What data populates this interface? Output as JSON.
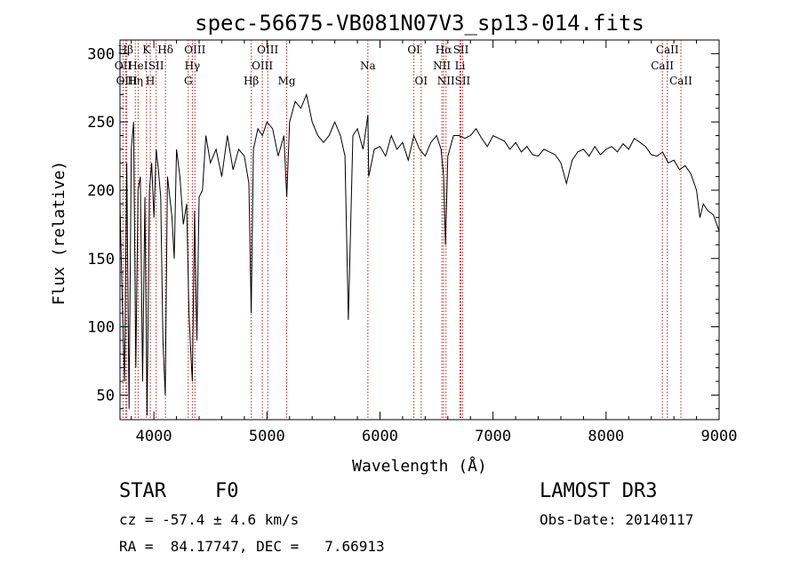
{
  "chart_data": {
    "type": "line",
    "title": "spec-56675-VB081N07V3_sp13-014.fits",
    "xlabel": "Wavelength (Å)",
    "ylabel": "Flux (relative)",
    "xlim": [
      3700,
      9000
    ],
    "ylim": [
      32,
      310
    ],
    "xticks": [
      4000,
      5000,
      6000,
      7000,
      8000,
      9000
    ],
    "yticks": [
      50,
      100,
      150,
      200,
      250,
      300
    ],
    "grid": false,
    "series": [
      {
        "name": "flux",
        "x": [
          3700,
          3720,
          3740,
          3760,
          3780,
          3800,
          3820,
          3840,
          3860,
          3880,
          3900,
          3920,
          3940,
          3960,
          3980,
          4000,
          4020,
          4040,
          4060,
          4080,
          4100,
          4120,
          4140,
          4160,
          4180,
          4200,
          4230,
          4260,
          4290,
          4310,
          4330,
          4340,
          4360,
          4380,
          4400,
          4430,
          4460,
          4500,
          4550,
          4600,
          4650,
          4700,
          4750,
          4800,
          4840,
          4861,
          4880,
          4920,
          4960,
          5000,
          5050,
          5100,
          5150,
          5175,
          5200,
          5250,
          5300,
          5350,
          5400,
          5450,
          5500,
          5550,
          5600,
          5650,
          5690,
          5720,
          5760,
          5800,
          5850,
          5893,
          5900,
          5950,
          6000,
          6050,
          6100,
          6150,
          6200,
          6250,
          6300,
          6350,
          6400,
          6450,
          6500,
          6540,
          6563,
          6580,
          6600,
          6650,
          6700,
          6750,
          6800,
          6850,
          6900,
          6950,
          7000,
          7050,
          7100,
          7150,
          7200,
          7250,
          7300,
          7350,
          7400,
          7450,
          7500,
          7550,
          7600,
          7650,
          7700,
          7750,
          7800,
          7850,
          7900,
          7950,
          8000,
          8050,
          8100,
          8150,
          8200,
          8250,
          8300,
          8350,
          8400,
          8450,
          8500,
          8550,
          8600,
          8650,
          8700,
          8750,
          8800,
          8830,
          8860,
          8900,
          8950,
          9000
        ],
        "values": [
          190,
          120,
          60,
          220,
          40,
          230,
          250,
          70,
          200,
          210,
          60,
          195,
          35,
          200,
          220,
          180,
          230,
          215,
          195,
          90,
          50,
          210,
          195,
          180,
          150,
          230,
          210,
          175,
          190,
          110,
          75,
          60,
          185,
          90,
          195,
          200,
          240,
          220,
          230,
          210,
          240,
          215,
          230,
          225,
          205,
          110,
          230,
          245,
          240,
          250,
          245,
          225,
          240,
          195,
          250,
          265,
          260,
          270,
          250,
          240,
          235,
          240,
          250,
          240,
          225,
          105,
          240,
          245,
          230,
          255,
          210,
          230,
          232,
          225,
          240,
          230,
          235,
          222,
          240,
          230,
          225,
          235,
          240,
          230,
          210,
          160,
          225,
          240,
          240,
          238,
          240,
          245,
          238,
          232,
          240,
          238,
          236,
          230,
          235,
          228,
          232,
          226,
          225,
          230,
          228,
          226,
          220,
          205,
          222,
          228,
          230,
          225,
          232,
          226,
          230,
          232,
          228,
          234,
          230,
          238,
          235,
          232,
          226,
          225,
          228,
          220,
          222,
          215,
          218,
          212,
          200,
          180,
          190,
          185,
          182,
          170
        ]
      }
    ],
    "lines": [
      {
        "label": "Hβ",
        "x": 3750,
        "row": 0
      },
      {
        "label": "OII",
        "x": 3727,
        "row": 1
      },
      {
        "label": "OIII",
        "x": 3760,
        "row": 2
      },
      {
        "label": "Hη",
        "x": 3835,
        "row": 2
      },
      {
        "label": "HeI",
        "x": 3860,
        "row": 1
      },
      {
        "label": "K",
        "x": 3934,
        "row": 0
      },
      {
        "label": "SII",
        "x": 4020,
        "row": 1
      },
      {
        "label": "H",
        "x": 3968,
        "row": 2
      },
      {
        "label": "Hδ",
        "x": 4102,
        "row": 0
      },
      {
        "label": "OIII",
        "x": 4363,
        "row": 0
      },
      {
        "label": "Hγ",
        "x": 4340,
        "row": 1
      },
      {
        "label": "G",
        "x": 4304,
        "row": 2
      },
      {
        "label": "Hβ",
        "x": 4861,
        "row": 2
      },
      {
        "label": "OIII",
        "x": 5007,
        "row": 0
      },
      {
        "label": "OIII",
        "x": 4959,
        "row": 1
      },
      {
        "label": "Mg",
        "x": 5175,
        "row": 2
      },
      {
        "label": "Na",
        "x": 5893,
        "row": 1
      },
      {
        "label": "OI",
        "x": 6300,
        "row": 0
      },
      {
        "label": "OI",
        "x": 6364,
        "row": 2
      },
      {
        "label": "Hα",
        "x": 6563,
        "row": 0
      },
      {
        "label": "SII",
        "x": 6716,
        "row": 0
      },
      {
        "label": "NII",
        "x": 6548,
        "row": 1
      },
      {
        "label": "Li",
        "x": 6708,
        "row": 1
      },
      {
        "label": "NII",
        "x": 6584,
        "row": 2
      },
      {
        "label": "SII",
        "x": 6731,
        "row": 2
      },
      {
        "label": "CaII",
        "x": 8542,
        "row": 0
      },
      {
        "label": "CaII",
        "x": 8498,
        "row": 1
      },
      {
        "label": "CaII",
        "x": 8662,
        "row": 2
      }
    ]
  },
  "info": {
    "object_class": "STAR",
    "subclass": "F0",
    "survey": "LAMOST DR3",
    "cz": "cz = -57.4 ± 4.6 km/s",
    "obs_date": "Obs-Date: 20140117",
    "coords": "RA =  84.17747, DEC =   7.66913"
  },
  "colors": {
    "line_marker": "#b22222",
    "spectrum": "#000000"
  }
}
